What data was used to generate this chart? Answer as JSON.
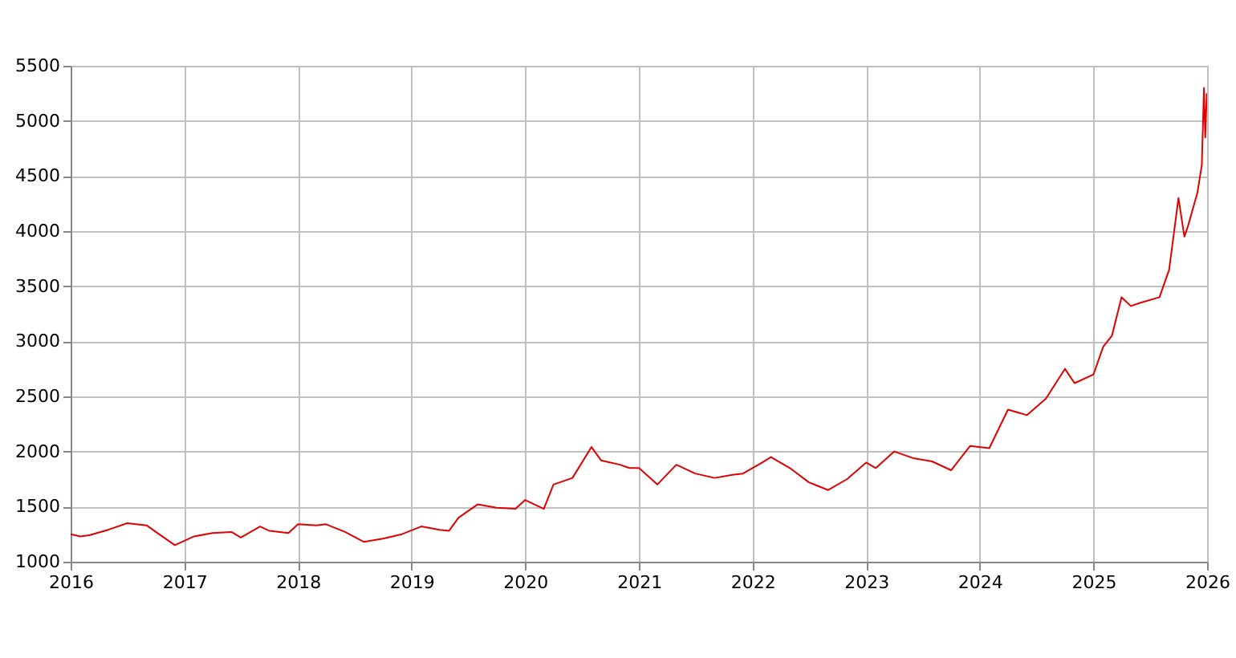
{
  "chart_data": {
    "type": "line",
    "x": [
      "2016-01",
      "2016-02",
      "2016-03",
      "2016-05",
      "2016-07",
      "2016-09",
      "2016-10",
      "2016-12",
      "2017-02",
      "2017-04",
      "2017-06",
      "2017-07",
      "2017-09",
      "2017-10",
      "2017-12",
      "2018-01",
      "2018-03",
      "2018-04",
      "2018-06",
      "2018-08",
      "2018-10",
      "2018-12",
      "2019-02",
      "2019-04",
      "2019-05",
      "2019-06",
      "2019-08",
      "2019-10",
      "2019-12",
      "2020-01",
      "2020-03",
      "2020-04",
      "2020-06",
      "2020-08",
      "2020-09",
      "2020-11",
      "2020-12",
      "2021-01",
      "2021-03",
      "2021-05",
      "2021-07",
      "2021-08",
      "2021-09",
      "2021-11",
      "2021-12",
      "2022-02",
      "2022-03",
      "2022-05",
      "2022-07",
      "2022-09",
      "2022-11",
      "2023-01",
      "2023-02",
      "2023-04",
      "2023-06",
      "2023-08",
      "2023-10",
      "2023-12",
      "2024-02",
      "2024-03",
      "2024-04",
      "2024-06",
      "2024-08",
      "2024-10",
      "2024-11",
      "2025-01",
      "2025-02",
      "2025-03",
      "2025-04",
      "2025-05",
      "2025-06",
      "2025-08",
      "2025-09",
      "2025-10",
      "2025-10-20",
      "2025-11",
      "2025-12",
      "2025-12-15",
      "2025-12-22",
      "2025-12-26",
      "2025-12-31"
    ],
    "series": [
      {
        "color": "#e00000",
        "values": [
          1250,
          1230,
          1240,
          1290,
          1350,
          1330,
          1270,
          1150,
          1230,
          1260,
          1270,
          1220,
          1320,
          1280,
          1260,
          1340,
          1330,
          1340,
          1270,
          1180,
          1210,
          1250,
          1320,
          1290,
          1280,
          1400,
          1520,
          1490,
          1480,
          1560,
          1480,
          1700,
          1760,
          2040,
          1920,
          1880,
          1850,
          1850,
          1700,
          1880,
          1800,
          1780,
          1760,
          1790,
          1800,
          1900,
          1950,
          1850,
          1720,
          1650,
          1750,
          1900,
          1850,
          2000,
          1940,
          1910,
          1830,
          2050,
          2030,
          2200,
          2380,
          2330,
          2480,
          2750,
          2620,
          2700,
          2950,
          3050,
          3400,
          3320,
          3350,
          3400,
          3650,
          4300,
          3950,
          4050,
          4350,
          4600,
          5300,
          4850,
          5250
        ]
      }
    ],
    "xlim": [
      "2016",
      "2026"
    ],
    "xticks": [
      "2016",
      "2017",
      "2018",
      "2019",
      "2020",
      "2021",
      "2022",
      "2023",
      "2024",
      "2025",
      "2026"
    ],
    "ylim": [
      1000,
      5500
    ],
    "yticks": [
      1000,
      1500,
      2000,
      2500,
      3000,
      3500,
      4000,
      4500,
      5000,
      5500
    ],
    "grid": true,
    "marker": "none",
    "line_style": "solid"
  }
}
